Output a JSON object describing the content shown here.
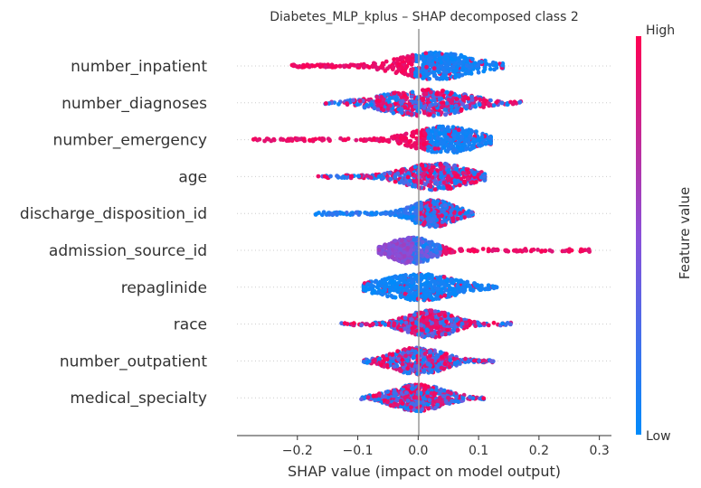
{
  "chart_data": {
    "type": "scatter",
    "subtype": "shap-beeswarm",
    "title": "Diabetes_MLP_kplus – SHAP decomposed class 2",
    "xlabel": "SHAP value (impact on model output)",
    "xlim": [
      -0.3,
      0.32
    ],
    "xticks": [
      -0.2,
      -0.1,
      0.0,
      0.1,
      0.2,
      0.3
    ],
    "xtick_labels": [
      "−0.2",
      "−0.1",
      "0.0",
      "0.1",
      "0.2",
      "0.3"
    ],
    "colorbar": {
      "label": "Feature value",
      "high_label": "High",
      "low_label": "Low",
      "low_color": "#008bfb",
      "high_color": "#ff0052"
    },
    "grid": false,
    "features": [
      {
        "name": "number_inpatient",
        "min": -0.21,
        "max": 0.14,
        "center": 0.03,
        "width": 0.14,
        "mode": "low_right"
      },
      {
        "name": "number_diagnoses",
        "min": -0.155,
        "max": 0.17,
        "center": 0.01,
        "width": 0.16,
        "mode": "mixed"
      },
      {
        "name": "number_emergency",
        "min": -0.275,
        "max": 0.12,
        "center": 0.045,
        "width": 0.12,
        "mode": "low_right"
      },
      {
        "name": "age",
        "min": -0.17,
        "max": 0.11,
        "center": 0.03,
        "width": 0.12,
        "mode": "mixed"
      },
      {
        "name": "discharge_disposition_id",
        "min": -0.17,
        "max": 0.09,
        "center": 0.025,
        "width": 0.08,
        "mode": "blue_left"
      },
      {
        "name": "admission_source_id",
        "min": -0.065,
        "max": 0.29,
        "center": -0.01,
        "width": 0.08,
        "mode": "purple_left"
      },
      {
        "name": "repaglinide",
        "min": -0.09,
        "max": 0.13,
        "center": 0.0,
        "width": 0.14,
        "mode": "low_all"
      },
      {
        "name": "race",
        "min": -0.13,
        "max": 0.155,
        "center": 0.02,
        "width": 0.09,
        "mode": "mixed"
      },
      {
        "name": "number_outpatient",
        "min": -0.09,
        "max": 0.125,
        "center": 0.0,
        "width": 0.1,
        "mode": "mixed"
      },
      {
        "name": "medical_specialty",
        "min": -0.095,
        "max": 0.11,
        "center": 0.0,
        "width": 0.1,
        "mode": "mixed"
      }
    ]
  }
}
